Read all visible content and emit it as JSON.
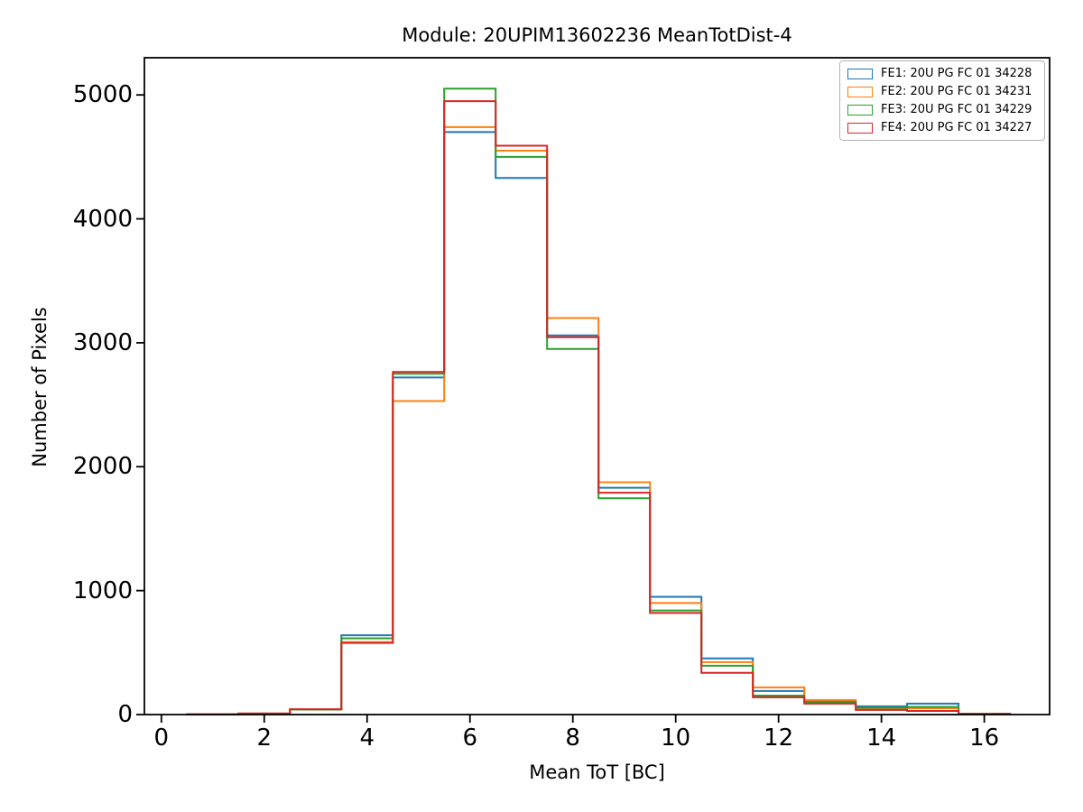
{
  "figure": {
    "title": "Module: 20UPIM13602236 MeanTotDist-4",
    "background_color": "#ffffff"
  },
  "chart_data": {
    "type": "step-histogram",
    "title": "Module: 20UPIM13602236 MeanTotDist-4",
    "xlabel": "Mean ToT [BC]",
    "ylabel": "Number of Pixels",
    "xlim": [
      -0.33,
      17.27
    ],
    "ylim": [
      0,
      5300
    ],
    "xticks": [
      0,
      2,
      4,
      6,
      8,
      10,
      12,
      14,
      16
    ],
    "yticks": [
      0,
      1000,
      2000,
      3000,
      4000,
      5000
    ],
    "grid": false,
    "legend_position": "upper right",
    "axis_color": "#000000",
    "bin_edges": [
      0.5,
      1.5,
      2.5,
      3.5,
      4.5,
      5.5,
      6.5,
      7.5,
      8.5,
      9.5,
      10.5,
      11.5,
      12.5,
      13.5,
      14.5,
      15.5,
      16.5
    ],
    "series": [
      {
        "name": "FE1: 20U PG FC 01 34228",
        "color": "#1f77b4",
        "values": [
          2,
          8,
          42,
          640,
          2720,
          4700,
          4330,
          3060,
          1830,
          950,
          453,
          190,
          110,
          66,
          88,
          7
        ]
      },
      {
        "name": "FE2: 20U PG FC 01 34231",
        "color": "#ff7f0e",
        "values": [
          2,
          8,
          40,
          585,
          2530,
          4740,
          4550,
          3200,
          1875,
          900,
          423,
          219,
          117,
          44,
          51,
          7
        ]
      },
      {
        "name": "FE3: 20U PG FC 01 34229",
        "color": "#2ca02c",
        "values": [
          2,
          8,
          41,
          615,
          2750,
          5050,
          4500,
          2950,
          1745,
          840,
          394,
          153,
          102,
          55,
          62,
          7
        ]
      },
      {
        "name": "FE4: 20U PG FC 01 34227",
        "color": "#d62728",
        "values": [
          2,
          8,
          43,
          578,
          2765,
          4950,
          4590,
          3045,
          1790,
          820,
          336,
          139,
          88,
          37,
          29,
          6
        ]
      }
    ]
  }
}
